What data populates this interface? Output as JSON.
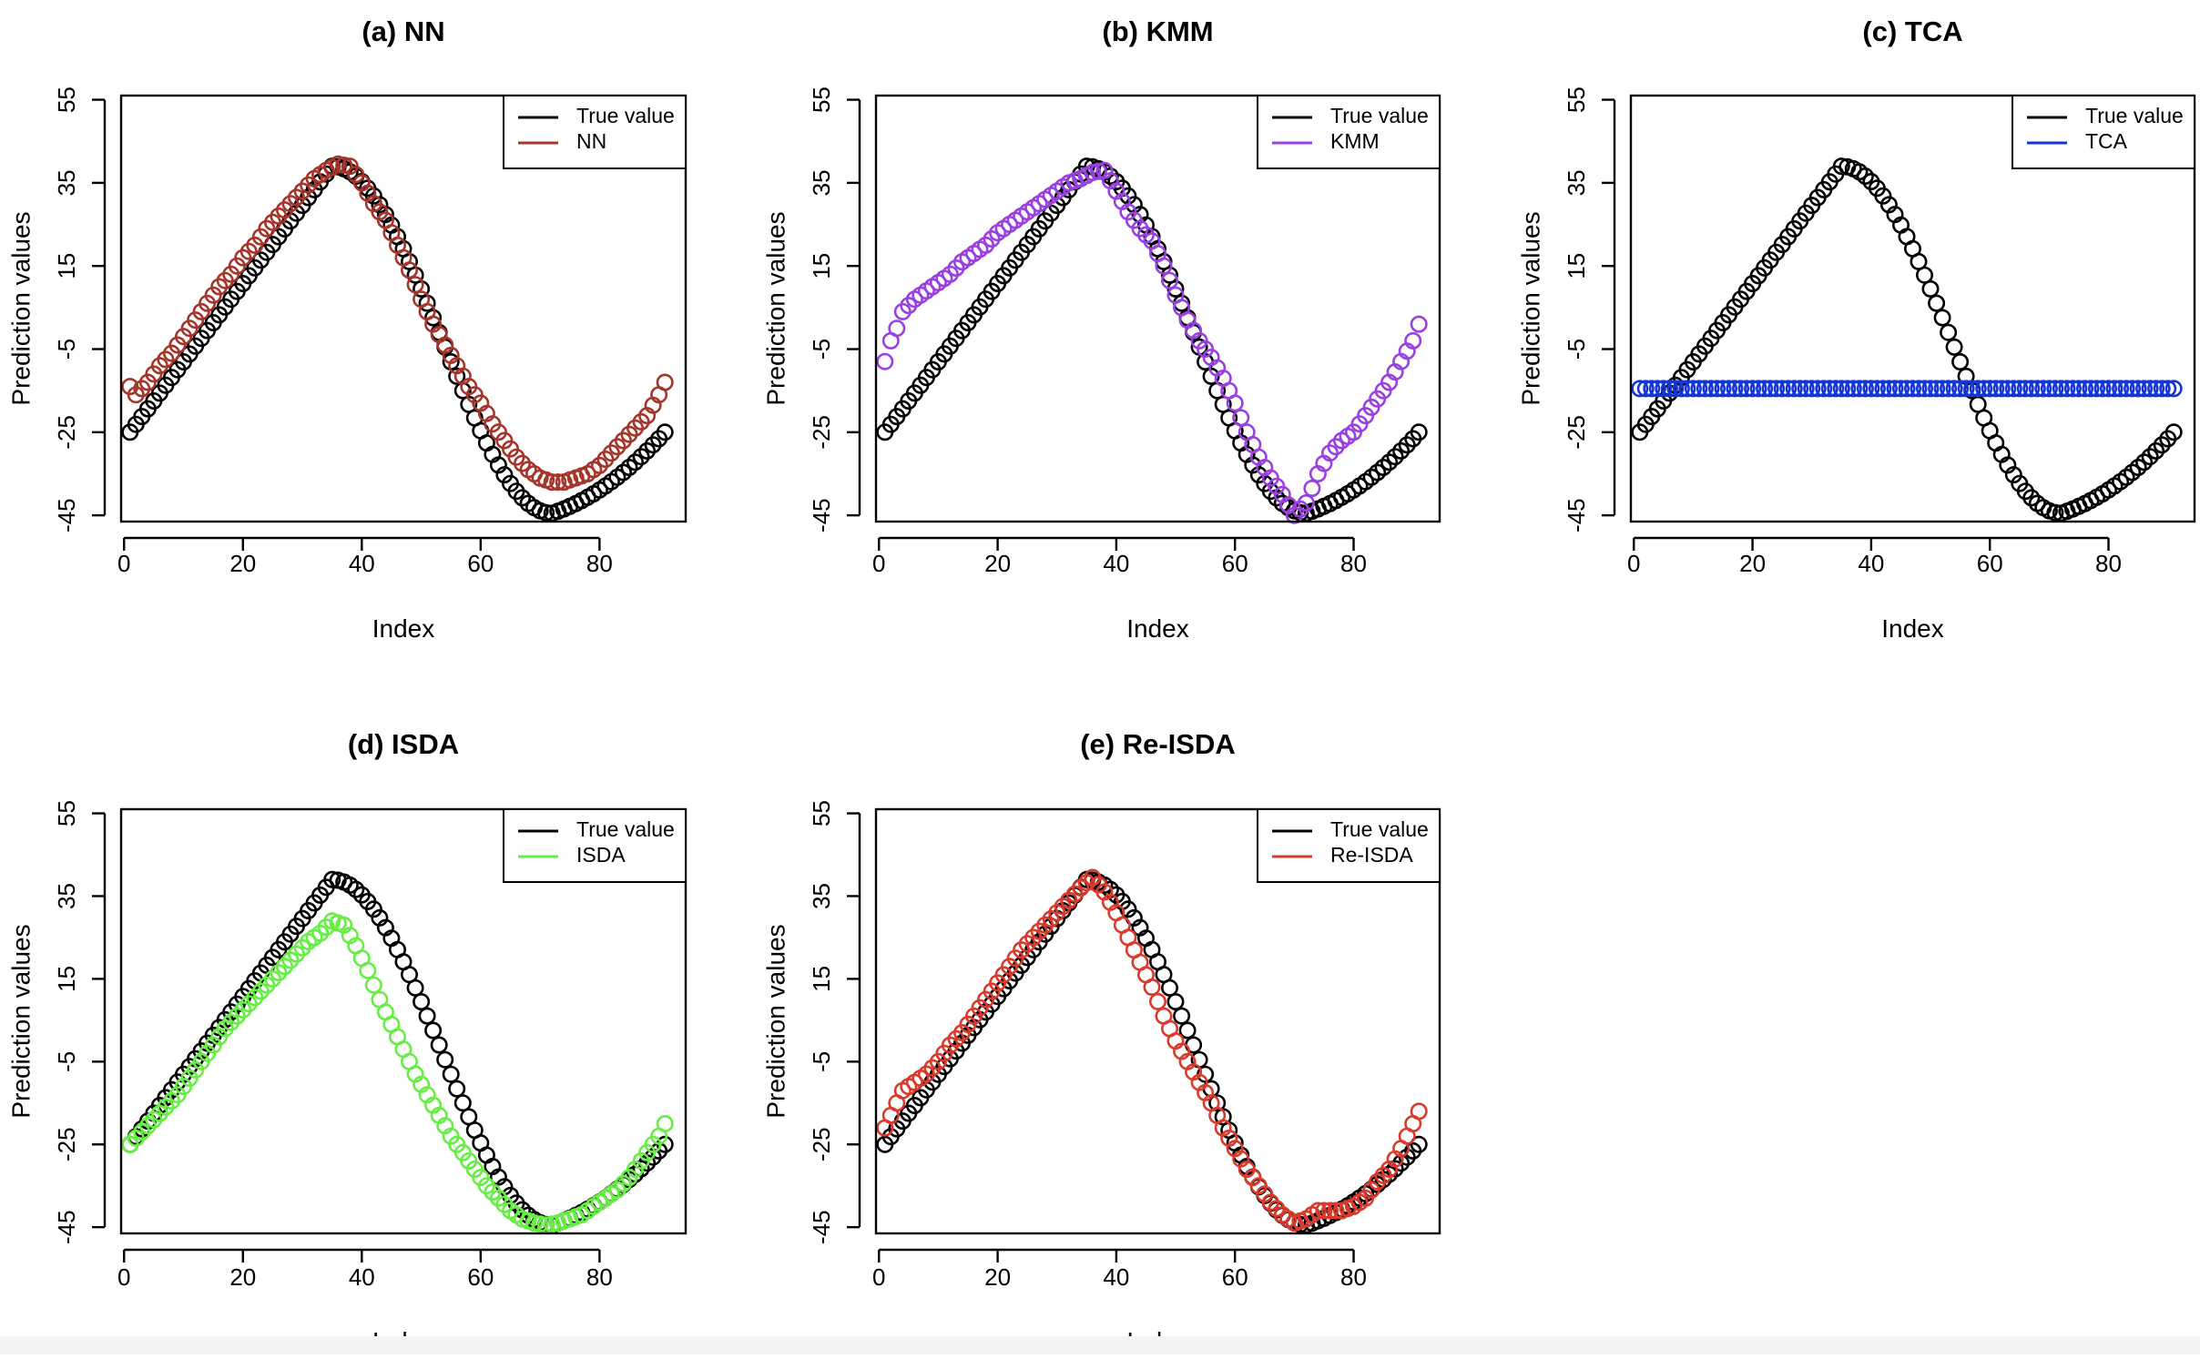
{
  "figure": {
    "background": "#ffffff"
  },
  "chart_data": [
    {
      "id": "a",
      "type": "scatter",
      "title": "(a) NN",
      "xlabel": "Index",
      "ylabel": "Prediction values",
      "xlim": [
        -0.5,
        94.5
      ],
      "ylim": [
        -46.5,
        56
      ],
      "xticks": [
        0,
        20,
        40,
        60,
        80
      ],
      "yticks": [
        -45,
        -25,
        -5,
        15,
        35,
        55
      ],
      "legend": {
        "position": "top-right",
        "entries": [
          "True value",
          "NN"
        ]
      },
      "series": [
        {
          "name": "True value",
          "color": "#000000",
          "model": "true",
          "x_start": 1,
          "x_end": 91
        },
        {
          "name": "NN",
          "color": "#a5352a",
          "model": "points",
          "points": [
            [
              1,
              -14
            ],
            [
              2,
              -16
            ],
            [
              4,
              -13
            ],
            [
              6,
              -9
            ],
            [
              8,
              -6
            ],
            [
              10,
              -2
            ],
            [
              12,
              2
            ],
            [
              14,
              6
            ],
            [
              16,
              10
            ],
            [
              18,
              13
            ],
            [
              20,
              17
            ],
            [
              22,
              20
            ],
            [
              24,
              24
            ],
            [
              26,
              27
            ],
            [
              28,
              30
            ],
            [
              30,
              33
            ],
            [
              32,
              36
            ],
            [
              34,
              38
            ],
            [
              36,
              39.5
            ],
            [
              38,
              39
            ],
            [
              40,
              35
            ],
            [
              42,
              30
            ],
            [
              44,
              26
            ],
            [
              46,
              20
            ],
            [
              48,
              14
            ],
            [
              50,
              7
            ],
            [
              52,
              1
            ],
            [
              54,
              -4
            ],
            [
              56,
              -9
            ],
            [
              58,
              -14
            ],
            [
              60,
              -18
            ],
            [
              62,
              -23
            ],
            [
              64,
              -27
            ],
            [
              66,
              -31
            ],
            [
              68,
              -34
            ],
            [
              70,
              -36
            ],
            [
              72,
              -37
            ],
            [
              74,
              -37
            ],
            [
              76,
              -36
            ],
            [
              78,
              -35
            ],
            [
              80,
              -33
            ],
            [
              82,
              -30
            ],
            [
              84,
              -27
            ],
            [
              86,
              -24
            ],
            [
              88,
              -21
            ],
            [
              90,
              -16
            ],
            [
              91,
              -13
            ]
          ]
        }
      ]
    },
    {
      "id": "b",
      "type": "scatter",
      "title": "(b) KMM",
      "xlabel": "Index",
      "ylabel": "Prediction values",
      "xlim": [
        -0.5,
        94.5
      ],
      "ylim": [
        -46.5,
        56
      ],
      "xticks": [
        0,
        20,
        40,
        60,
        80
      ],
      "yticks": [
        -45,
        -25,
        -5,
        15,
        35,
        55
      ],
      "legend": {
        "position": "top-right",
        "entries": [
          "True value",
          "KMM"
        ]
      },
      "series": [
        {
          "name": "True value",
          "color": "#000000",
          "model": "true",
          "x_start": 1,
          "x_end": 91
        },
        {
          "name": "KMM",
          "color": "#9a3fe0",
          "model": "points",
          "points": [
            [
              1,
              -8
            ],
            [
              2,
              -3
            ],
            [
              3,
              0
            ],
            [
              4,
              4
            ],
            [
              6,
              7
            ],
            [
              8,
              9
            ],
            [
              10,
              11
            ],
            [
              12,
              13
            ],
            [
              14,
              16
            ],
            [
              16,
              18
            ],
            [
              18,
              20
            ],
            [
              20,
              23
            ],
            [
              22,
              25
            ],
            [
              24,
              27
            ],
            [
              26,
              29
            ],
            [
              28,
              31
            ],
            [
              30,
              33
            ],
            [
              32,
              35
            ],
            [
              34,
              36
            ],
            [
              36,
              37.5
            ],
            [
              38,
              38
            ],
            [
              40,
              33
            ],
            [
              42,
              28
            ],
            [
              44,
              24
            ],
            [
              46,
              21
            ],
            [
              48,
              15
            ],
            [
              50,
              8
            ],
            [
              52,
              2
            ],
            [
              54,
              -3
            ],
            [
              56,
              -7
            ],
            [
              58,
              -12
            ],
            [
              60,
              -18
            ],
            [
              62,
              -25
            ],
            [
              64,
              -31
            ],
            [
              66,
              -36
            ],
            [
              68,
              -40
            ],
            [
              70,
              -45
            ],
            [
              72,
              -42
            ],
            [
              74,
              -35
            ],
            [
              76,
              -30
            ],
            [
              78,
              -27
            ],
            [
              80,
              -25
            ],
            [
              82,
              -21
            ],
            [
              84,
              -17
            ],
            [
              86,
              -13
            ],
            [
              88,
              -8
            ],
            [
              90,
              -3
            ],
            [
              91,
              1
            ]
          ]
        }
      ]
    },
    {
      "id": "c",
      "type": "scatter",
      "title": "(c) TCA",
      "xlabel": "Index",
      "ylabel": "Prediction values",
      "xlim": [
        -0.5,
        94.5
      ],
      "ylim": [
        -46.5,
        56
      ],
      "xticks": [
        0,
        20,
        40,
        60,
        80
      ],
      "yticks": [
        -45,
        -25,
        -5,
        15,
        35,
        55
      ],
      "legend": {
        "position": "top-right",
        "entries": [
          "True value",
          "TCA"
        ]
      },
      "series": [
        {
          "name": "True value",
          "color": "#000000",
          "model": "true",
          "x_start": 1,
          "x_end": 91
        },
        {
          "name": "TCA",
          "color": "#1536d6",
          "model": "constant",
          "value": -14.5,
          "x_start": 1,
          "x_end": 91
        }
      ]
    },
    {
      "id": "d",
      "type": "scatter",
      "title": "(d) ISDA",
      "xlabel": "Index",
      "ylabel": "Prediction values",
      "xlim": [
        -0.5,
        94.5
      ],
      "ylim": [
        -46.5,
        56
      ],
      "xticks": [
        0,
        20,
        40,
        60,
        80
      ],
      "yticks": [
        -45,
        -25,
        -5,
        15,
        35,
        55
      ],
      "legend": {
        "position": "top-right",
        "entries": [
          "True value",
          "ISDA"
        ]
      },
      "series": [
        {
          "name": "True value",
          "color": "#000000",
          "model": "true",
          "x_start": 1,
          "x_end": 91
        },
        {
          "name": "ISDA",
          "color": "#66ee44",
          "model": "points",
          "points": [
            [
              1,
              -25
            ],
            [
              3,
              -22
            ],
            [
              5,
              -19
            ],
            [
              7,
              -16
            ],
            [
              9,
              -13
            ],
            [
              11,
              -9
            ],
            [
              13,
              -5
            ],
            [
              15,
              -1
            ],
            [
              17,
              3
            ],
            [
              19,
              6
            ],
            [
              21,
              9
            ],
            [
              23,
              12
            ],
            [
              25,
              15
            ],
            [
              27,
              18
            ],
            [
              29,
              21
            ],
            [
              31,
              24
            ],
            [
              33,
              26
            ],
            [
              35,
              29
            ],
            [
              37,
              28
            ],
            [
              39,
              23
            ],
            [
              41,
              17
            ],
            [
              43,
              10
            ],
            [
              45,
              4
            ],
            [
              47,
              -2
            ],
            [
              49,
              -8
            ],
            [
              51,
              -13
            ],
            [
              53,
              -18
            ],
            [
              55,
              -23
            ],
            [
              57,
              -27
            ],
            [
              59,
              -31
            ],
            [
              61,
              -35
            ],
            [
              63,
              -38
            ],
            [
              65,
              -41
            ],
            [
              67,
              -43
            ],
            [
              69,
              -44
            ],
            [
              71,
              -44.5
            ],
            [
              73,
              -44
            ],
            [
              75,
              -43
            ],
            [
              77,
              -42
            ],
            [
              79,
              -40
            ],
            [
              81,
              -38
            ],
            [
              83,
              -36
            ],
            [
              85,
              -33
            ],
            [
              87,
              -29
            ],
            [
              89,
              -25
            ],
            [
              90,
              -23
            ],
            [
              91,
              -20
            ]
          ]
        }
      ]
    },
    {
      "id": "e",
      "type": "scatter",
      "title": "(e) Re-ISDA",
      "xlabel": "Index",
      "ylabel": "Prediction values",
      "xlim": [
        -0.5,
        94.5
      ],
      "ylim": [
        -46.5,
        56
      ],
      "xticks": [
        0,
        20,
        40,
        60,
        80
      ],
      "yticks": [
        -45,
        -25,
        -5,
        15,
        35,
        55
      ],
      "legend": {
        "position": "top-right",
        "entries": [
          "True value",
          "Re-ISDA"
        ]
      },
      "series": [
        {
          "name": "True value",
          "color": "#000000",
          "model": "true",
          "x_start": 1,
          "x_end": 91
        },
        {
          "name": "Re-ISDA",
          "color": "#d93a2b",
          "model": "points",
          "points": [
            [
              1,
              -21
            ],
            [
              2,
              -18
            ],
            [
              3,
              -15
            ],
            [
              4,
              -12
            ],
            [
              6,
              -10
            ],
            [
              8,
              -8
            ],
            [
              10,
              -5
            ],
            [
              12,
              -1
            ],
            [
              14,
              2
            ],
            [
              16,
              6
            ],
            [
              18,
              10
            ],
            [
              20,
              14
            ],
            [
              22,
              18
            ],
            [
              24,
              22
            ],
            [
              26,
              25
            ],
            [
              28,
              28
            ],
            [
              30,
              31
            ],
            [
              32,
              34
            ],
            [
              34,
              37
            ],
            [
              36,
              39.5
            ],
            [
              38,
              36
            ],
            [
              40,
              31
            ],
            [
              42,
              25
            ],
            [
              44,
              19
            ],
            [
              46,
              13
            ],
            [
              48,
              6
            ],
            [
              50,
              0
            ],
            [
              52,
              -5
            ],
            [
              54,
              -10
            ],
            [
              56,
              -15
            ],
            [
              58,
              -21
            ],
            [
              60,
              -26
            ],
            [
              62,
              -31
            ],
            [
              64,
              -35
            ],
            [
              66,
              -39
            ],
            [
              68,
              -42
            ],
            [
              70,
              -44
            ],
            [
              72,
              -43
            ],
            [
              74,
              -41
            ],
            [
              76,
              -41
            ],
            [
              78,
              -41
            ],
            [
              80,
              -40
            ],
            [
              82,
              -38
            ],
            [
              84,
              -34
            ],
            [
              86,
              -31
            ],
            [
              88,
              -26
            ],
            [
              90,
              -20
            ],
            [
              91,
              -17
            ]
          ]
        }
      ]
    }
  ]
}
